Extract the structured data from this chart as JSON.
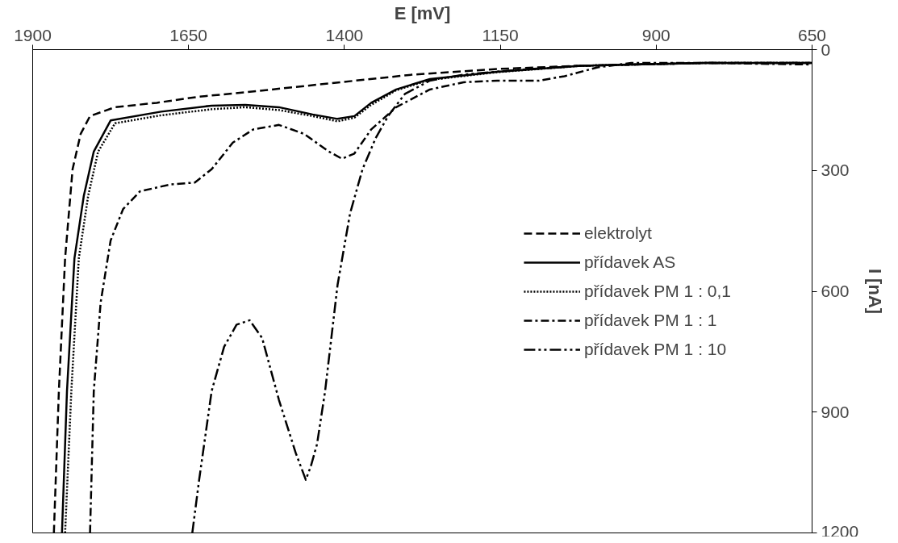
{
  "chart_data": {
    "type": "line",
    "xlabel": "E [mV]",
    "ylabel": "I [nA]",
    "xlim": [
      1900,
      650
    ],
    "xticks": [
      1900,
      1650,
      1400,
      1150,
      900,
      650
    ],
    "ylim": [
      1200,
      0
    ],
    "yticks": [
      0,
      300,
      600,
      900,
      1200
    ],
    "grid": false,
    "legend": "right",
    "marker": "none",
    "series": [
      {
        "name": "elektrolyt",
        "color": "#000000",
        "line_style": "dashed",
        "x": [
          1866,
          1858,
          1848,
          1836,
          1823,
          1808,
          1768,
          1701,
          1634,
          1559,
          1425,
          1290,
          1155,
          1020,
          818,
          650
        ],
        "values": [
          1200,
          848,
          518,
          297,
          209,
          165,
          143,
          132,
          117,
          106,
          84,
          62,
          48,
          40,
          33,
          33
        ]
      },
      {
        "name": "přídavek AS",
        "color": "#000000",
        "line_style": "solid",
        "x": [
          1853,
          1845,
          1833,
          1818,
          1802,
          1775,
          1694,
          1613,
          1559,
          1505,
          1451,
          1411,
          1384,
          1357,
          1317,
          1263,
          1155,
          1020,
          818,
          650
        ],
        "values": [
          1200,
          848,
          518,
          363,
          253,
          176,
          154,
          139,
          137,
          143,
          161,
          172,
          165,
          132,
          99,
          73,
          55,
          40,
          33,
          33
        ]
      },
      {
        "name": "přídavek PM 1 : 0,1",
        "color": "#000000",
        "line_style": "dotted",
        "x": [
          1848,
          1838,
          1826,
          1811,
          1795,
          1768,
          1694,
          1613,
          1559,
          1505,
          1451,
          1411,
          1384,
          1357,
          1317,
          1263,
          1155,
          1020,
          818,
          650
        ],
        "values": [
          1200,
          848,
          518,
          363,
          253,
          183,
          163,
          148,
          143,
          150,
          165,
          178,
          169,
          137,
          101,
          75,
          56,
          40,
          33,
          33
        ]
      },
      {
        "name": "přídavek PM 1 : 1",
        "color": "#000000",
        "line_style": "dashdot",
        "x": [
          1808,
          1802,
          1791,
          1775,
          1755,
          1728,
          1680,
          1640,
          1613,
          1579,
          1546,
          1505,
          1465,
          1425,
          1404,
          1384,
          1357,
          1317,
          1263,
          1209,
          1155,
          1088,
          1047,
          994,
          940,
          818,
          650
        ],
        "values": [
          1200,
          848,
          628,
          474,
          396,
          352,
          335,
          330,
          297,
          231,
          198,
          187,
          209,
          253,
          271,
          258,
          198,
          143,
          99,
          81,
          77,
          77,
          66,
          44,
          33,
          33,
          37
        ]
      },
      {
        "name": "přídavek PM 1 : 10",
        "color": "#000000",
        "line_style": "dashdotdot",
        "x": [
          1644,
          1633,
          1613,
          1593,
          1573,
          1552,
          1532,
          1505,
          1478,
          1462,
          1454,
          1444,
          1431,
          1411,
          1391,
          1371,
          1350,
          1330,
          1303,
          1263,
          1209,
          1128,
          1020,
          818,
          650
        ],
        "values": [
          1200,
          1068,
          848,
          738,
          683,
          672,
          716,
          870,
          1002,
          1068,
          1035,
          980,
          848,
          584,
          407,
          297,
          220,
          165,
          110,
          77,
          62,
          51,
          40,
          33,
          33
        ]
      }
    ]
  }
}
